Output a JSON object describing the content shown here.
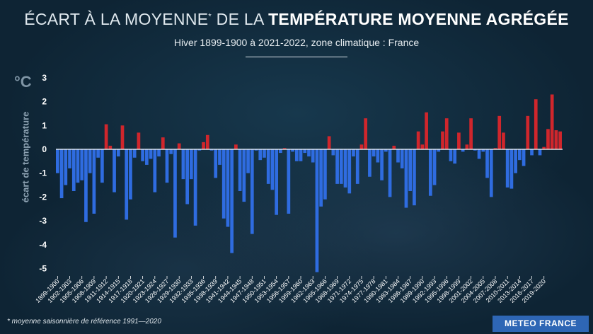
{
  "header": {
    "title_part1": "ÉCART À LA MOYENNE",
    "title_mark": "*",
    "title_part2": " DE LA ",
    "title_bold": "TEMPÉRATURE MOYENNE AGRÉGÉE",
    "subtitle": "Hiver 1899-1900 à 2021-2022, zone climatique : France"
  },
  "footnote": "* moyenne saisonnière de référence 1991—2020",
  "brand": "METEO FRANCE",
  "colors": {
    "positive": "#d0262c",
    "negative": "#2f6ce0",
    "axis": "#ffffff",
    "ticks": "#ffffff"
  },
  "chart_data": {
    "type": "bar",
    "unit_label": "°C",
    "ylabel": "écart de température",
    "ylim": [
      -5.3,
      3.3
    ],
    "yticks": [
      3,
      2,
      1,
      0,
      -1,
      -2,
      -3,
      -4,
      -5
    ],
    "tick_labels": [
      "1899-1900",
      "1902-1903",
      "1905-1906",
      "1908-1909",
      "1911-1912",
      "1914-1915",
      "1917-1918",
      "1920-1921",
      "1923-1924",
      "1926-1927",
      "1929-1930",
      "1932-1933",
      "1935-1936",
      "1938-1939",
      "1941-1942",
      "1944-1945",
      "1947-1948",
      "1950-1951",
      "1953-1954",
      "1956-1957",
      "1959-1960",
      "1962-1963",
      "1965-1966",
      "1968-1969",
      "1971-1972",
      "1974-1975",
      "1977-1978",
      "1980-1981",
      "1983-1984",
      "1986-1987",
      "1989-1990",
      "1992-1993",
      "1995-1996",
      "1998-1999",
      "2001-2002",
      "2004-2005",
      "2007-2008",
      "2010-2011",
      "2013-2014",
      "2016-2017",
      "2019-2020"
    ],
    "first_year": 1899,
    "values": [
      -1.0,
      -2.05,
      -1.5,
      -0.8,
      -1.75,
      -1.4,
      -1.3,
      -3.05,
      -1.0,
      -2.7,
      -0.35,
      -1.4,
      1.05,
      0.15,
      -1.8,
      -0.3,
      1.0,
      -2.95,
      -2.1,
      -0.35,
      0.7,
      -0.5,
      -0.65,
      -0.4,
      -1.8,
      -0.3,
      0.5,
      -1.4,
      -0.2,
      -3.7,
      0.25,
      -1.25,
      -2.3,
      -1.25,
      -3.2,
      -0.05,
      0.3,
      0.6,
      -0.05,
      -1.2,
      -0.65,
      -2.9,
      -3.25,
      -4.35,
      0.2,
      -1.75,
      -2.2,
      -1.0,
      -3.55,
      -0.05,
      -0.45,
      -0.35,
      -1.45,
      -1.7,
      -2.75,
      -0.15,
      0.05,
      -2.7,
      -0.1,
      -0.5,
      -0.5,
      -0.15,
      -0.3,
      -0.55,
      -5.15,
      -2.4,
      -2.1,
      0.55,
      -0.25,
      -1.45,
      -1.45,
      -1.6,
      -1.85,
      -0.3,
      -1.45,
      0.2,
      1.3,
      -1.15,
      -0.3,
      -0.55,
      -1.3,
      -0.1,
      -2.0,
      0.15,
      -0.55,
      -0.8,
      -2.45,
      -1.75,
      -2.35,
      0.75,
      0.2,
      1.55,
      -1.95,
      -1.5,
      -0.1,
      0.75,
      1.3,
      -0.5,
      -0.6,
      0.7,
      -0.1,
      0.2,
      1.3,
      -0.05,
      -0.4,
      -0.1,
      -1.2,
      -2.0,
      0.05,
      1.4,
      0.7,
      -1.6,
      -1.65,
      -1.0,
      -0.45,
      -0.7,
      1.4,
      -0.25,
      2.1,
      -0.25,
      0.1,
      0.85,
      2.3,
      0.8,
      0.75
    ]
  }
}
